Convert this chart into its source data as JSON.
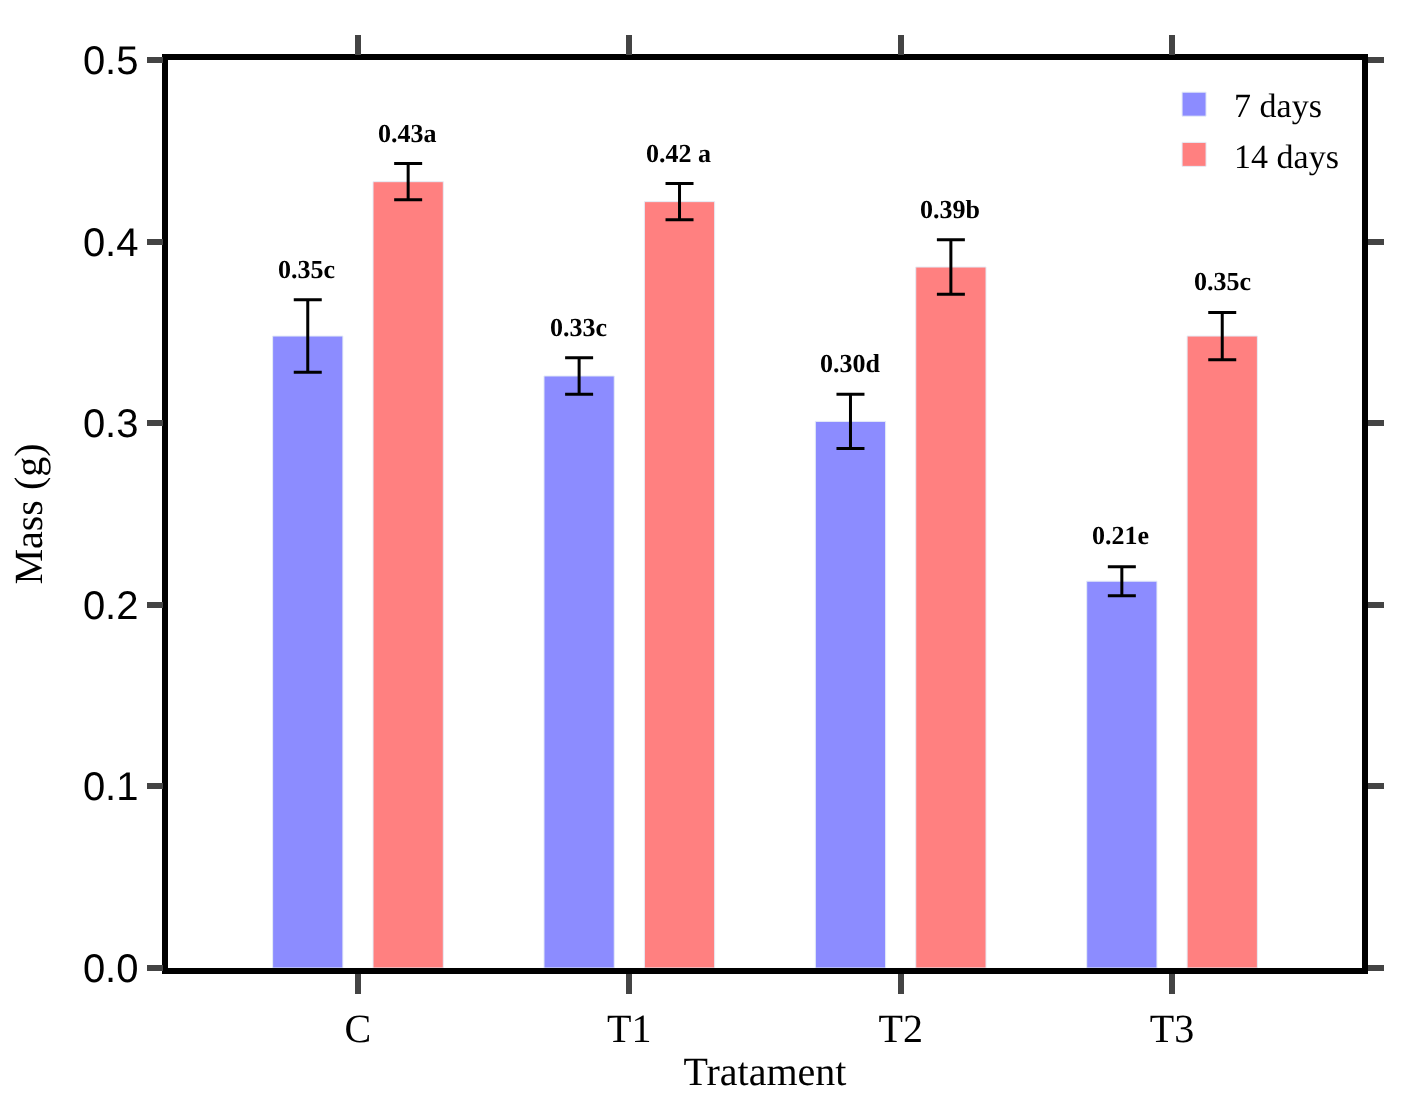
{
  "chart_data": {
    "type": "bar",
    "xlabel": "Tratament",
    "ylabel": "Mass (g)",
    "categories": [
      "C",
      "T1",
      "T2",
      "T3"
    ],
    "series": [
      {
        "name": "7 days",
        "color": "#8c8cff",
        "values": [
          0.348,
          0.326,
          0.301,
          0.213
        ],
        "errors": [
          0.02,
          0.01,
          0.015,
          0.008
        ],
        "value_labels": [
          "0.35c",
          "0.33c",
          "0.30d",
          "0.21e"
        ]
      },
      {
        "name": "14 days",
        "color": "#ff8080",
        "values": [
          0.433,
          0.422,
          0.386,
          0.348
        ],
        "errors": [
          0.01,
          0.01,
          0.015,
          0.013
        ],
        "value_labels": [
          "0.43a",
          "0.42 a",
          "0.39b",
          "0.35c"
        ]
      }
    ],
    "ylim": [
      0,
      0.5
    ],
    "yticks": [
      "0.0",
      0.1,
      0.2,
      0.3,
      0.4,
      0.5
    ],
    "legend": "top right"
  }
}
